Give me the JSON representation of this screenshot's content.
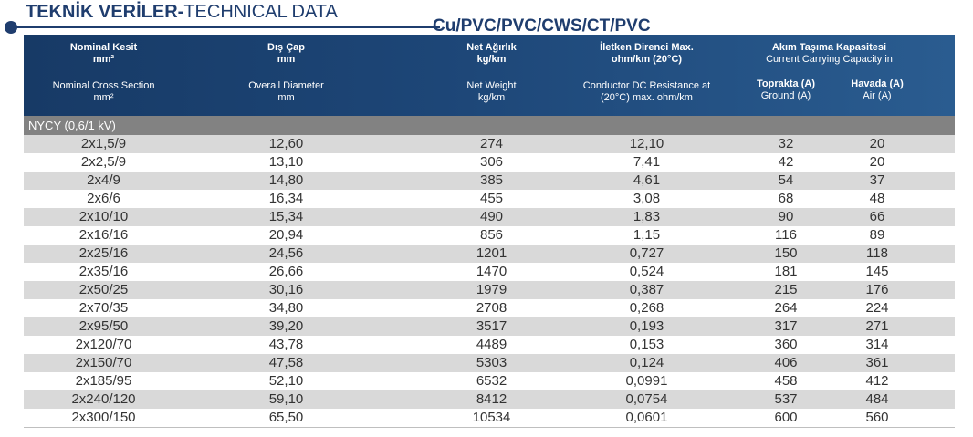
{
  "title": {
    "bold": "TEKNİK VERİLER-",
    "regular": "TECHNICAL DATA"
  },
  "product": "Cu/PVC/PVC/CWS/CT/PVC",
  "headers": {
    "section": {
      "tr": "Nominal Kesit",
      "tr_unit": "mm²",
      "en": "Nominal Cross Section",
      "en_unit": "mm²"
    },
    "diameter": {
      "tr": "Dış Çap",
      "tr_unit": "mm",
      "en": "Overall Diameter",
      "en_unit": "mm"
    },
    "weight": {
      "tr": "Net Ağırlık",
      "tr_unit": "kg/km",
      "en": "Net Weight",
      "en_unit": "kg/km"
    },
    "resistance": {
      "tr": "İletken Direnci Max.",
      "tr_unit": "ohm/km (20°C)",
      "en": "Conductor DC Resistance at",
      "en_unit": "(20°C) max. ohm/km"
    },
    "capacity": {
      "tr": "Akım Taşıma Kapasitesi",
      "en": "Current Carrying Capacity in"
    },
    "ground": {
      "tr": "Toprakta (A)",
      "en": "Ground (A)"
    },
    "air": {
      "tr": "Havada (A)",
      "en": "Air (A)"
    }
  },
  "group": "NYCY (0,6/1 kV)",
  "rows": [
    [
      "2x1,5/9",
      "12,60",
      "274",
      "12,10",
      "32",
      "20"
    ],
    [
      "2x2,5/9",
      "13,10",
      "306",
      "7,41",
      "42",
      "20"
    ],
    [
      "2x4/9",
      "14,80",
      "385",
      "4,61",
      "54",
      "37"
    ],
    [
      "2x6/6",
      "16,34",
      "455",
      "3,08",
      "68",
      "48"
    ],
    [
      "2x10/10",
      "15,34",
      "490",
      "1,83",
      "90",
      "66"
    ],
    [
      "2x16/16",
      "20,94",
      "856",
      "1,15",
      "116",
      "89"
    ],
    [
      "2x25/16",
      "24,56",
      "1201",
      "0,727",
      "150",
      "118"
    ],
    [
      "2x35/16",
      "26,66",
      "1470",
      "0,524",
      "181",
      "145"
    ],
    [
      "2x50/25",
      "30,16",
      "1979",
      "0,387",
      "215",
      "176"
    ],
    [
      "2x70/35",
      "34,80",
      "2708",
      "0,268",
      "264",
      "224"
    ],
    [
      "2x95/50",
      "39,20",
      "3517",
      "0,193",
      "317",
      "271"
    ],
    [
      "2x120/70",
      "43,78",
      "4489",
      "0,153",
      "360",
      "314"
    ],
    [
      "2x150/70",
      "47,58",
      "5303",
      "0,124",
      "406",
      "361"
    ],
    [
      "2x185/95",
      "52,10",
      "6532",
      "0,0991",
      "458",
      "412"
    ],
    [
      "2x240/120",
      "59,10",
      "8412",
      "0,0754",
      "537",
      "484"
    ],
    [
      "2x300/150",
      "65,50",
      "10534",
      "0,0601",
      "600",
      "560"
    ]
  ]
}
